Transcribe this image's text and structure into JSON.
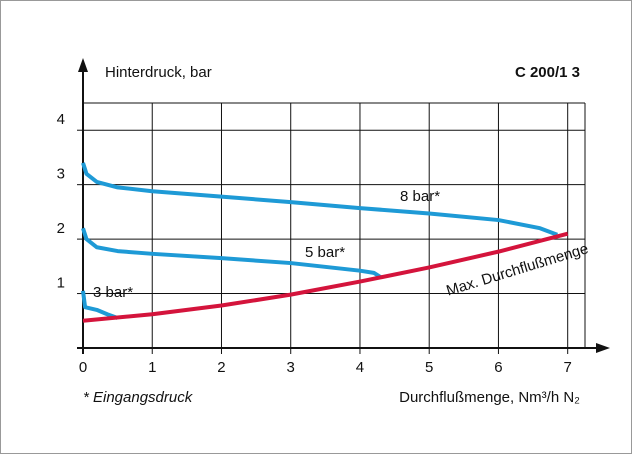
{
  "chart_data": {
    "type": "line",
    "title": "C 200/1 3",
    "y_label": "Hinterdruck, bar",
    "x_label": "Durchflußmenge, Nm³/h N₂",
    "note": "* Eingangsdruck",
    "xlim": [
      0,
      7.25
    ],
    "ylim": [
      0,
      4.5
    ],
    "xticks": [
      0,
      1,
      2,
      3,
      4,
      5,
      6,
      7
    ],
    "yticks": [
      1,
      2,
      3,
      4
    ],
    "grid": true,
    "series": [
      {
        "name": "8 bar*",
        "color": "#1e9ad6",
        "x": [
          0,
          0.05,
          0.2,
          0.5,
          1,
          2,
          3,
          4,
          5,
          6,
          6.6,
          6.85
        ],
        "values": [
          3.4,
          3.2,
          3.05,
          2.95,
          2.88,
          2.78,
          2.68,
          2.57,
          2.47,
          2.35,
          2.2,
          2.08
        ]
      },
      {
        "name": "5 bar*",
        "color": "#1e9ad6",
        "x": [
          0,
          0.05,
          0.2,
          0.5,
          1,
          2,
          3,
          4,
          4.2,
          4.3
        ],
        "values": [
          2.2,
          2.0,
          1.85,
          1.78,
          1.73,
          1.65,
          1.56,
          1.42,
          1.38,
          1.3
        ]
      },
      {
        "name": "3 bar*",
        "color": "#1e9ad6",
        "x": [
          0,
          0.03,
          0.2,
          0.35,
          0.5
        ],
        "values": [
          1.05,
          0.75,
          0.7,
          0.62,
          0.55
        ]
      },
      {
        "name": "Max. Durchflußmenge",
        "color": "#d4143c",
        "x": [
          0,
          1,
          2,
          3,
          4,
          5,
          6,
          7
        ],
        "values": [
          0.5,
          0.62,
          0.78,
          0.98,
          1.22,
          1.48,
          1.77,
          2.1
        ]
      }
    ]
  }
}
